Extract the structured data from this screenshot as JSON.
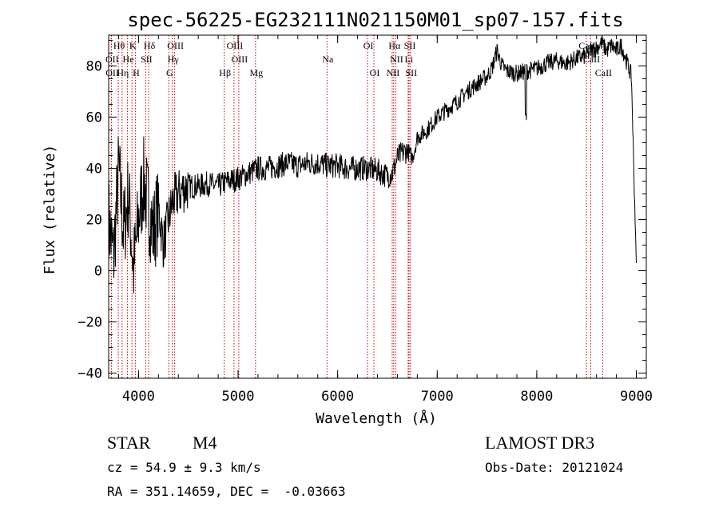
{
  "chart_data": {
    "type": "line",
    "title": "spec-56225-EG232111N021150M01_sp07-157.fits",
    "xlabel": "Wavelength (Å)",
    "ylabel": "Flux (relative)",
    "xlim": [
      3700,
      9100
    ],
    "ylim": [
      -42,
      92
    ],
    "x_ticks": [
      4000,
      5000,
      6000,
      7000,
      8000,
      9000
    ],
    "y_ticks": [
      -40,
      -20,
      0,
      20,
      40,
      60,
      80
    ],
    "grid": false,
    "line_color": "#000000",
    "marker_color": "#cc0000",
    "series": [
      {
        "x": [
          3700,
          3750,
          3800,
          3850,
          3900,
          3950,
          4000,
          4050,
          4100,
          4150,
          4200,
          4250,
          4300,
          4350,
          4400,
          4450,
          4500,
          4600,
          4700,
          4800,
          4900,
          5000,
          5100,
          5200,
          5300,
          5400,
          5500,
          5600,
          5700,
          5800,
          5900,
          6000,
          6100,
          6200,
          6300,
          6400,
          6500,
          6550,
          6600,
          6650,
          6700,
          6750,
          6800,
          6900,
          7000,
          7100,
          7200,
          7300,
          7400,
          7500,
          7550,
          7600,
          7650,
          7700,
          7800,
          7900,
          8000,
          8100,
          8200,
          8300,
          8400,
          8500,
          8550,
          8600,
          8650,
          8700,
          8750,
          8800,
          8850,
          8900,
          8950,
          9000
        ],
        "values": [
          20,
          5,
          40,
          15,
          30,
          0,
          20,
          35,
          25,
          15,
          25,
          10,
          20,
          28,
          30,
          32,
          33,
          33,
          34,
          33,
          35,
          36,
          38,
          40,
          40,
          41,
          42,
          41,
          42,
          42,
          41,
          41,
          40,
          40,
          40,
          39,
          37,
          38,
          44,
          46,
          47,
          44,
          52,
          55,
          60,
          63,
          66,
          70,
          73,
          76,
          79,
          86,
          80,
          78,
          77,
          78,
          79,
          81,
          82,
          81,
          83,
          84,
          86,
          87,
          89,
          86,
          88,
          86,
          88,
          82,
          76,
          3
        ]
      }
    ],
    "spectral_lines": [
      {
        "label": "Hθ",
        "wavelength": 3797,
        "row": 1
      },
      {
        "label": "K",
        "wavelength": 3934,
        "row": 1
      },
      {
        "label": "Hδ",
        "wavelength": 4102,
        "row": 1
      },
      {
        "label": "OIII",
        "wavelength": 4363,
        "row": 1
      },
      {
        "label": "OIII",
        "wavelength": 4959,
        "row": 1
      },
      {
        "label": "OI",
        "wavelength": 6300,
        "row": 1
      },
      {
        "label": "Hα",
        "wavelength": 6563,
        "row": 1
      },
      {
        "label": "SII",
        "wavelength": 6717,
        "row": 1
      },
      {
        "label": "CaII",
        "wavelength": 8498,
        "row": 1
      },
      {
        "label": "OII",
        "wavelength": 3727,
        "row": 2
      },
      {
        "label": "He",
        "wavelength": 3889,
        "row": 2
      },
      {
        "label": "SII",
        "wavelength": 4072,
        "row": 2
      },
      {
        "label": "Hγ",
        "wavelength": 4340,
        "row": 2
      },
      {
        "label": "OIII",
        "wavelength": 5007,
        "row": 2
      },
      {
        "label": "Na",
        "wavelength": 5893,
        "row": 2
      },
      {
        "label": "NII",
        "wavelength": 6584,
        "row": 2
      },
      {
        "label": "Li",
        "wavelength": 6708,
        "row": 2
      },
      {
        "label": "CaII",
        "wavelength": 8542,
        "row": 2
      },
      {
        "label": "OII",
        "wavelength": 3729,
        "row": 3
      },
      {
        "label": "Hη",
        "wavelength": 3835,
        "row": 3
      },
      {
        "label": "H",
        "wavelength": 3968,
        "row": 3
      },
      {
        "label": "G",
        "wavelength": 4304,
        "row": 3
      },
      {
        "label": "Hβ",
        "wavelength": 4861,
        "row": 3
      },
      {
        "label": "Mg",
        "wavelength": 5175,
        "row": 3
      },
      {
        "label": "OI",
        "wavelength": 6364,
        "row": 3
      },
      {
        "label": "NII",
        "wavelength": 6548,
        "row": 3
      },
      {
        "label": "SII",
        "wavelength": 6731,
        "row": 3
      },
      {
        "label": "CaII",
        "wavelength": 8662,
        "row": 3
      }
    ]
  },
  "info": {
    "object_class": "STAR",
    "subclass": "M4",
    "survey": "LAMOST DR3",
    "cz": "cz = 54.9 ± 9.3 km/s",
    "obs_date": "Obs-Date: 20121024",
    "coords": "RA = 351.14659, DEC =  -0.03663"
  }
}
